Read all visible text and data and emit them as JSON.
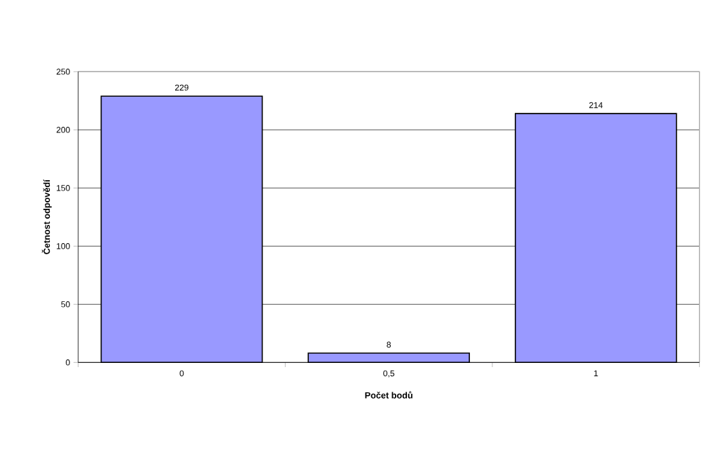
{
  "chart_data": {
    "type": "bar",
    "xlabel": "Počet bodů",
    "ylabel": "Četnost odpovědí",
    "categories": [
      "0",
      "0,5",
      "1"
    ],
    "values": [
      229,
      8,
      214
    ],
    "color": "#9999ff",
    "ylim": [
      0,
      250
    ],
    "yticks": [
      0,
      50,
      100,
      150,
      200,
      250
    ],
    "grid": "y",
    "data_labels": true
  }
}
